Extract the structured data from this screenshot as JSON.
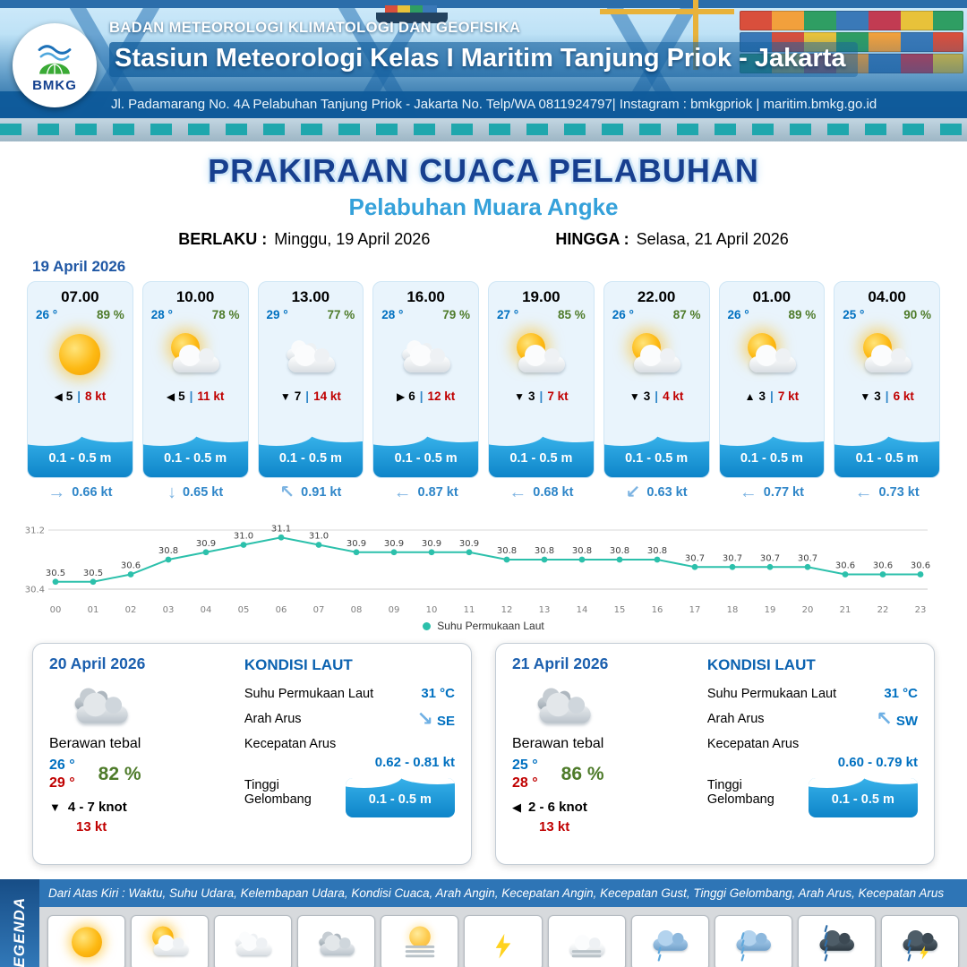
{
  "colors": {
    "accent_blue": "#0070c0",
    "humidity_green": "#4e7b2a",
    "wind_red": "#c00000",
    "chart_teal": "#2cc0ab",
    "title_navy": "#173f8f",
    "subtitle_blue": "#35a1da",
    "header_blue": "#16609f"
  },
  "header": {
    "logo_label": "BMKG",
    "org": "BADAN METEOROLOGI KLIMATOLOGI DAN GEOFISIKA",
    "station": "Stasiun Meteorologi Kelas I Maritim Tanjung Priok - Jakarta",
    "address": "Jl. Padamarang No. 4A Pelabuhan Tanjung Priok - Jakarta No. Telp/WA 0811924797| Instagram : bmkgpriok | maritim.bmkg.go.id"
  },
  "title": {
    "main": "PRAKIRAAN CUACA PELABUHAN",
    "subtitle": "Pelabuhan Muara Angke",
    "valid_from_label": "BERLAKU :",
    "valid_from": "Minggu, 19 April 2026",
    "valid_to_label": "HINGGA :",
    "valid_to": "Selasa, 21 April 2026"
  },
  "forecast_date": "19 April 2026",
  "forecast_cards": [
    {
      "time": "07.00",
      "temp": "26 °",
      "humidity": "89 %",
      "icon": "cerah",
      "wind_dir": "left",
      "wind_speed": "5",
      "wind_gust": "8 kt",
      "wave": "0.1 - 0.5 m",
      "current_dir": "right",
      "current_speed": "0.66 kt"
    },
    {
      "time": "10.00",
      "temp": "28 °",
      "humidity": "78 %",
      "icon": "cerah-berawan",
      "wind_dir": "left",
      "wind_speed": "5",
      "wind_gust": "11 kt",
      "wave": "0.1 - 0.5 m",
      "current_dir": "down",
      "current_speed": "0.65 kt"
    },
    {
      "time": "13.00",
      "temp": "29 °",
      "humidity": "77 %",
      "icon": "berawan",
      "wind_dir": "down",
      "wind_speed": "7",
      "wind_gust": "14 kt",
      "wave": "0.1 - 0.5 m",
      "current_dir": "up-left",
      "current_speed": "0.91 kt"
    },
    {
      "time": "16.00",
      "temp": "28 °",
      "humidity": "79 %",
      "icon": "berawan",
      "wind_dir": "right",
      "wind_speed": "6",
      "wind_gust": "12 kt",
      "wave": "0.1 - 0.5 m",
      "current_dir": "left",
      "current_speed": "0.87 kt"
    },
    {
      "time": "19.00",
      "temp": "27 °",
      "humidity": "85 %",
      "icon": "cerah-berawan",
      "wind_dir": "down",
      "wind_speed": "3",
      "wind_gust": "7 kt",
      "wave": "0.1 - 0.5 m",
      "current_dir": "left",
      "current_speed": "0.68 kt"
    },
    {
      "time": "22.00",
      "temp": "26 °",
      "humidity": "87 %",
      "icon": "cerah-berawan",
      "wind_dir": "down",
      "wind_speed": "3",
      "wind_gust": "4 kt",
      "wave": "0.1 - 0.5 m",
      "current_dir": "down-left",
      "current_speed": "0.63 kt"
    },
    {
      "time": "01.00",
      "temp": "26 °",
      "humidity": "89 %",
      "icon": "cerah-berawan",
      "wind_dir": "up",
      "wind_speed": "3",
      "wind_gust": "7 kt",
      "wave": "0.1 - 0.5 m",
      "current_dir": "left",
      "current_speed": "0.77 kt"
    },
    {
      "time": "04.00",
      "temp": "25 °",
      "humidity": "90 %",
      "icon": "cerah-berawan",
      "wind_dir": "down",
      "wind_speed": "3",
      "wind_gust": "6 kt",
      "wave": "0.1 - 0.5 m",
      "current_dir": "left",
      "current_speed": "0.73 kt"
    }
  ],
  "chart_data": {
    "type": "line",
    "series_name": "Suhu Permukaan Laut",
    "x": [
      "00",
      "01",
      "02",
      "03",
      "04",
      "05",
      "06",
      "07",
      "08",
      "09",
      "10",
      "11",
      "12",
      "13",
      "14",
      "15",
      "16",
      "17",
      "18",
      "19",
      "20",
      "21",
      "22",
      "23"
    ],
    "values": [
      30.5,
      30.5,
      30.6,
      30.8,
      30.9,
      31.0,
      31.1,
      31.0,
      30.9,
      30.9,
      30.9,
      30.9,
      30.8,
      30.8,
      30.8,
      30.8,
      30.8,
      30.7,
      30.7,
      30.7,
      30.7,
      30.6,
      30.6,
      30.6
    ],
    "ylim": [
      30.4,
      31.2
    ],
    "unit": "°C",
    "legend": "Suhu Permukaan Laut",
    "legend_position": "bottom",
    "grid": true,
    "line_color": "#2cc0ab"
  },
  "daily_cards": [
    {
      "date": "20 April 2026",
      "icon": "berawan-tebal",
      "condition": "Berawan tebal",
      "temp_min": "26 °",
      "temp_max": "29 °",
      "humidity": "82 %",
      "wind_dir": "down",
      "wind_range": "4 - 7 knot",
      "wind_gust": "13 kt",
      "sea": {
        "title": "KONDISI LAUT",
        "sst_label": "Suhu Permukaan Laut",
        "sst_value": "31 °C",
        "dir_label": "Arah Arus",
        "dir_value": "SE",
        "dir_arrow": "down-right",
        "speed_label": "Kecepatan Arus",
        "speed_value": "0.62 - 0.81 kt",
        "wave_label": "Tinggi Gelombang",
        "wave_value": "0.1 - 0.5 m"
      }
    },
    {
      "date": "21 April 2026",
      "icon": "berawan-tebal",
      "condition": "Berawan tebal",
      "temp_min": "25 °",
      "temp_max": "28 °",
      "humidity": "86 %",
      "wind_dir": "left",
      "wind_range": "2 - 6 knot",
      "wind_gust": "13 kt",
      "sea": {
        "title": "KONDISI LAUT",
        "sst_label": "Suhu Permukaan Laut",
        "sst_value": "31 °C",
        "dir_label": "Arah Arus",
        "dir_value": "SW",
        "dir_arrow": "up-left",
        "speed_label": "Kecepatan Arus",
        "speed_value": "0.60 - 0.79 kt",
        "wave_label": "Tinggi Gelombang",
        "wave_value": "0.1 - 0.5 m"
      }
    }
  ],
  "legend": {
    "sidebar": "LEGENDA",
    "note": "Dari Atas Kiri : Waktu, Suhu Udara, Kelembapan Udara, Kondisi Cuaca, Arah Angin, Kecepatan Angin, Kecepatan Gust, Tinggi Gelombang, Arah Arus, Kecepatan Arus",
    "items": [
      {
        "label": "Cerah",
        "icon": "cerah"
      },
      {
        "label": "Cerah Berawan",
        "icon": "cerah-berawan"
      },
      {
        "label": "Berawan",
        "icon": "berawan"
      },
      {
        "label": "Berawan Tebal",
        "icon": "berawan-tebal"
      },
      {
        "label": "Udara Kabur",
        "icon": "udara-kabur"
      },
      {
        "label": "Petir",
        "icon": "petir"
      },
      {
        "label": "Kabut",
        "icon": "kabut"
      },
      {
        "label": "Hujan Ringan",
        "icon": "hujan-ringan"
      },
      {
        "label": "Hujan Sedang",
        "icon": "hujan-sedang"
      },
      {
        "label": "Hujan Lebat",
        "icon": "hujan-lebat"
      },
      {
        "label": "Hujan Petir",
        "icon": "hujan-petir"
      }
    ]
  }
}
